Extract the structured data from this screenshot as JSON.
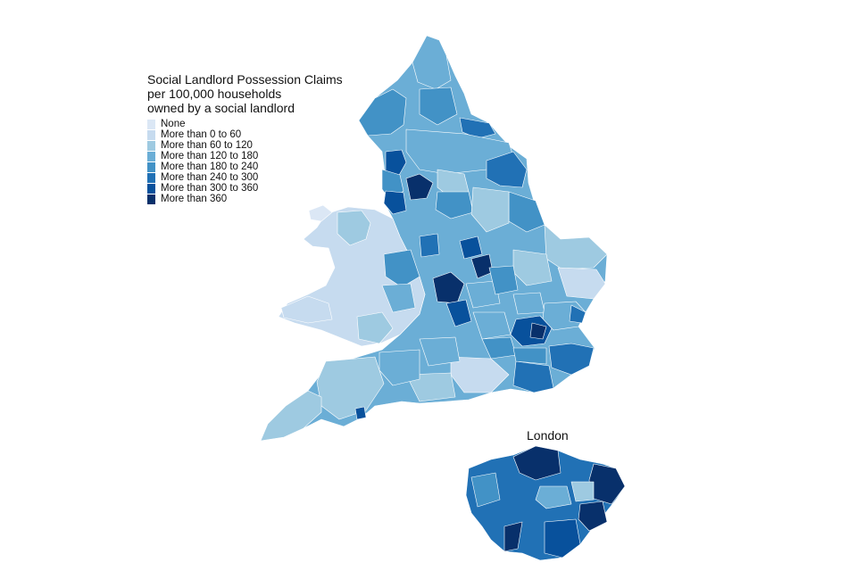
{
  "legend": {
    "title": "Social Landlord Possession Claims\nper 100,000 households\nowned by a social landlord",
    "items": [
      {
        "label": "None",
        "color": "#dbe7f5"
      },
      {
        "label": "More than 0 to 60",
        "color": "#c6dbef"
      },
      {
        "label": "More than 60 to 120",
        "color": "#9ecae1"
      },
      {
        "label": "More than 120 to 180",
        "color": "#6baed6"
      },
      {
        "label": "More than 180 to 240",
        "color": "#4292c6"
      },
      {
        "label": "More than 240 to 300",
        "color": "#2171b5"
      },
      {
        "label": "More than 300 to 360",
        "color": "#08519c"
      },
      {
        "label": "More than 360",
        "color": "#08306b"
      }
    ]
  },
  "inset": {
    "title": "London"
  },
  "map": {
    "regions": [
      {
        "name": "england-base",
        "class": 3
      },
      {
        "name": "wales-base",
        "class": 1
      },
      {
        "name": "wales-anglesey",
        "class": 0
      },
      {
        "name": "wales-north",
        "class": 2
      },
      {
        "name": "wales-southwest",
        "class": 1
      },
      {
        "name": "cumbria",
        "class": 4
      },
      {
        "name": "northumberland",
        "class": 3
      },
      {
        "name": "north-yorkshire",
        "class": 3
      },
      {
        "name": "east-riding",
        "class": 5
      },
      {
        "name": "lancashire-blackpool",
        "class": 6
      },
      {
        "name": "manchester-cluster",
        "class": 7
      },
      {
        "name": "leicester-cluster",
        "class": 7
      },
      {
        "name": "birmingham-cluster",
        "class": 7
      },
      {
        "name": "midlands-dark",
        "class": 6
      },
      {
        "name": "norfolk",
        "class": 2
      },
      {
        "name": "suffolk",
        "class": 1
      },
      {
        "name": "essex-coast",
        "class": 5
      },
      {
        "name": "kent",
        "class": 5
      },
      {
        "name": "sussex",
        "class": 5
      },
      {
        "name": "hampshire",
        "class": 1
      },
      {
        "name": "devon",
        "class": 2
      },
      {
        "name": "cornwall",
        "class": 2
      },
      {
        "name": "london-east-dark",
        "class": 7
      },
      {
        "name": "plymouth",
        "class": 6
      }
    ]
  }
}
